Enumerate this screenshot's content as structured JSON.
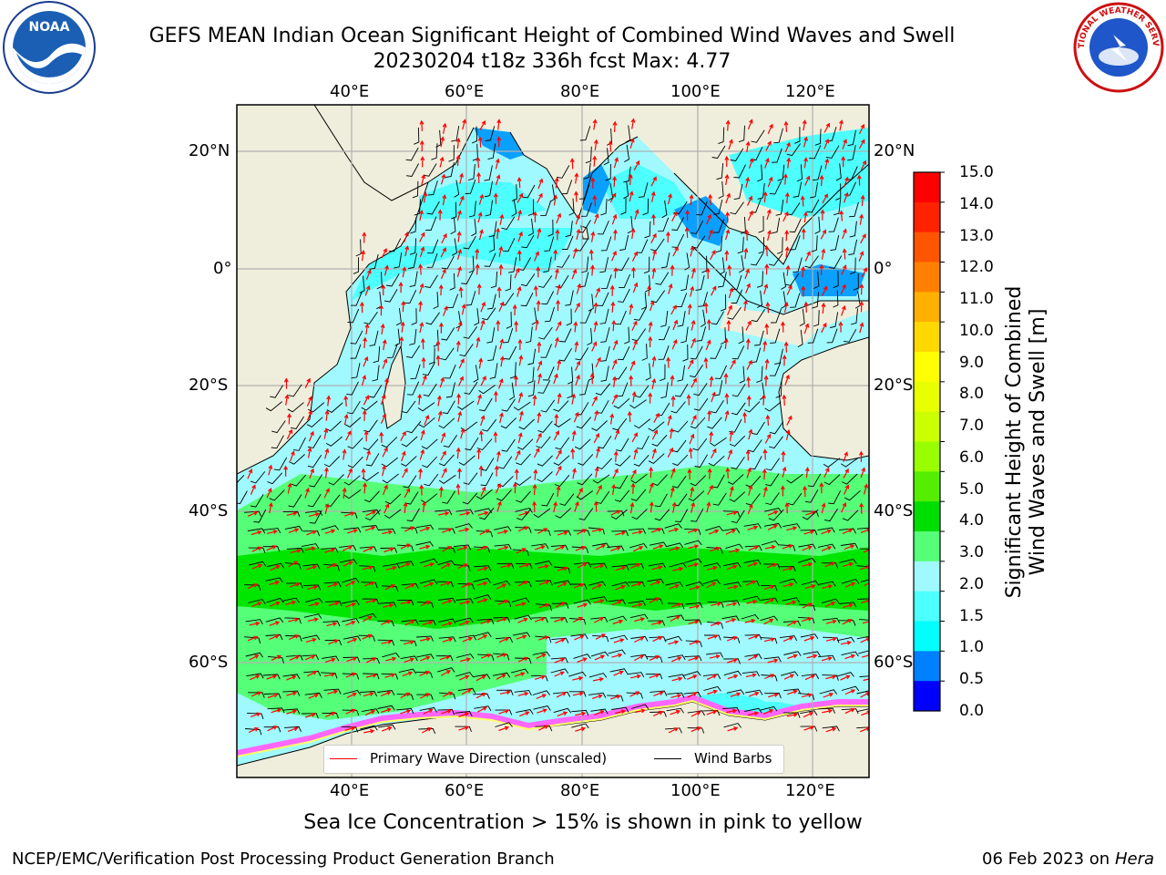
{
  "title": {
    "line1": "GEFS MEAN Indian Ocean Significant Height of Combined Wind Waves and Swell",
    "line2": "20230204 t18z 336h fcst   Max: 4.77"
  },
  "logos": {
    "left": "NOAA",
    "right": "NATIONAL WEATHER SERVICE"
  },
  "map": {
    "lon_ticks": [
      "40°E",
      "60°E",
      "80°E",
      "100°E",
      "120°E"
    ],
    "lat_ticks": [
      "20°N",
      "0°",
      "20°S",
      "40°S",
      "60°S"
    ],
    "colors": {
      "land": "#efeedc",
      "ocean_low": "#0aa0ff",
      "ocean_light": "#9ff9ff",
      "ocean_mid": "#4dffff",
      "band_light_green": "#55ff77",
      "band_green": "#00e600",
      "ice_pink": "#ff66ff",
      "ice_yellow": "#ffff66",
      "wave_arrow": "#ff0000",
      "wind_barb": "#000000"
    }
  },
  "legend": {
    "wave": "Primary Wave Direction (unscaled)",
    "wind": "Wind Barbs"
  },
  "colorbar": {
    "title_line1": "Significant Height of Combined",
    "title_line2": "Wind Waves and Swell [m]",
    "labels": [
      "15.0",
      "14.0",
      "13.0",
      "12.0",
      "11.0",
      "10.0",
      "9.0",
      "8.0",
      "7.0",
      "6.0",
      "5.0",
      "4.0",
      "3.0",
      "2.0",
      "1.5",
      "1.0",
      "0.5",
      "0.0"
    ],
    "colors": [
      "#ff0000",
      "#ff2200",
      "#ff5500",
      "#ff8000",
      "#ffb000",
      "#ffd800",
      "#ffff00",
      "#e8ff00",
      "#ccff00",
      "#99ff00",
      "#55ee00",
      "#00dd00",
      "#55ff77",
      "#9ff9ff",
      "#4dffff",
      "#00ffff",
      "#0080ff",
      "#0000ff"
    ]
  },
  "footer": {
    "ice_note": "Sea Ice Concentration > 15% is shown in pink to yellow",
    "credit": "NCEP/EMC/Verification Post Processing Product Generation Branch",
    "date": "06 Feb 2023 on",
    "host": "Hera"
  }
}
